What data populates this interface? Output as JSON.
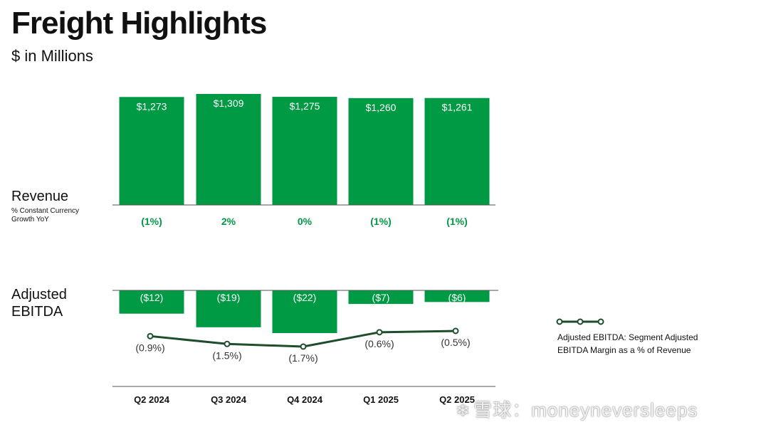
{
  "title": "Freight Highlights",
  "subtitle": "$ in Millions",
  "revenue_section": {
    "label": "Revenue",
    "note_line1": "% Constant Currency",
    "note_line2": "Growth YoY"
  },
  "ebitda_section": {
    "label_line1": "Adjusted",
    "label_line2": "EBITDA"
  },
  "legend": {
    "line1": "Adjusted EBITDA: Segment Adjusted",
    "line2": "EBITDA Margin as a % of Revenue"
  },
  "watermark": "雪球：moneyneversleeps",
  "colors": {
    "bar": "#009A44",
    "growth_text": "#009A44",
    "margin_line": "#1E4D2B",
    "axis": "#555555"
  },
  "chart_data": [
    {
      "type": "bar",
      "categories": [
        "Q2 2024",
        "Q3 2024",
        "Q4 2024",
        "Q1 2025",
        "Q2 2025"
      ],
      "values": [
        1273,
        1309,
        1275,
        1260,
        1261
      ],
      "value_labels": [
        "$1,273",
        "$1,309",
        "$1,275",
        "$1,260",
        "$1,261"
      ],
      "growth_labels": [
        "(1%)",
        "2%",
        "0%",
        "(1%)",
        "(1%)"
      ]
    },
    {
      "type": "bar",
      "categories": [
        "Q2 2024",
        "Q3 2024",
        "Q4 2024",
        "Q1 2025",
        "Q2 2025"
      ],
      "values": [
        -12,
        -19,
        -22,
        -7,
        -6
      ],
      "value_labels": [
        "($12)",
        "($19)",
        "($22)",
        "($7)",
        "($6)"
      ]
    },
    {
      "type": "line",
      "categories": [
        "Q2 2024",
        "Q3 2024",
        "Q4 2024",
        "Q1 2025",
        "Q2 2025"
      ],
      "values": [
        -0.9,
        -1.5,
        -1.7,
        -0.6,
        -0.5
      ],
      "value_labels": [
        "(0.9%)",
        "(1.5%)",
        "(1.7%)",
        "(0.6%)",
        "(0.5%)"
      ]
    }
  ]
}
